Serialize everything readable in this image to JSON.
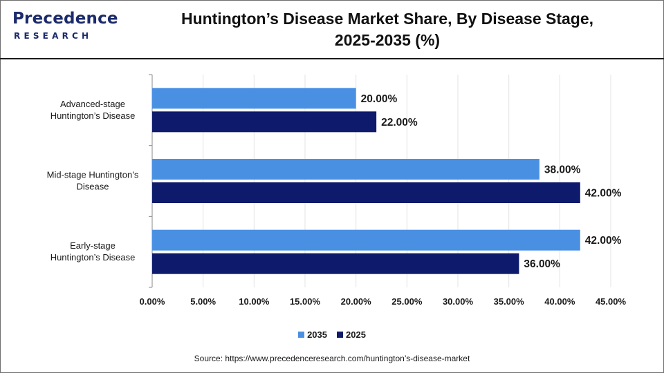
{
  "header": {
    "logo_word": "Precedence",
    "logo_sub": "RESEARCH",
    "title_line1": "Huntington’s Disease Market Share, By Disease Stage,",
    "title_line2": "2025-2035 (%)"
  },
  "colors": {
    "series_2035": "#4a90e2",
    "series_2025": "#0e1a6b",
    "brand": "#1b2a6b"
  },
  "chart_data": {
    "type": "bar",
    "orientation": "horizontal",
    "categories": [
      [
        "Advanced-stage",
        "Huntington’s Disease"
      ],
      [
        "Mid-stage Huntington’s",
        "Disease"
      ],
      [
        "Early-stage",
        "Huntington’s Disease"
      ]
    ],
    "series": [
      {
        "name": "2035",
        "values": [
          20.0,
          38.0,
          42.0
        ],
        "labels": [
          "20.00%",
          "38.00%",
          "42.00%"
        ]
      },
      {
        "name": "2025",
        "values": [
          22.0,
          42.0,
          36.0
        ],
        "labels": [
          "22.00%",
          "42.00%",
          "36.00%"
        ]
      }
    ],
    "xlim": [
      0,
      45
    ],
    "xticks": [
      "0.00%",
      "5.00%",
      "10.00%",
      "15.00%",
      "20.00%",
      "25.00%",
      "30.00%",
      "35.00%",
      "40.00%",
      "45.00%"
    ],
    "grid": true,
    "legend_position": "bottom"
  },
  "legend": [
    {
      "label": "2035"
    },
    {
      "label": "2025"
    }
  ],
  "source": "Source: https://www.precedenceresearch.com/huntington’s-disease-market"
}
